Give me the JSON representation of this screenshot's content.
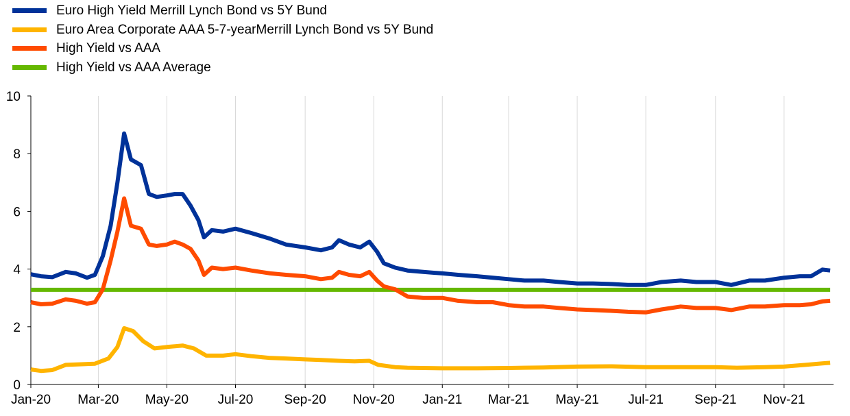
{
  "chart_data": {
    "type": "line",
    "title": "",
    "xlabel": "",
    "ylabel": "",
    "ylim": [
      0,
      10
    ],
    "xlim": [
      "2020-01-01",
      "2021-12-15"
    ],
    "y_ticks": [
      0,
      2,
      4,
      6,
      8,
      10
    ],
    "y_tick_labels": [
      "0",
      "2",
      "4",
      "6",
      "8",
      "10"
    ],
    "x_ticks": [
      "2020-01-01",
      "2020-03-01",
      "2020-05-01",
      "2020-07-01",
      "2020-09-01",
      "2020-11-01",
      "2021-01-01",
      "2021-03-01",
      "2021-05-01",
      "2021-07-01",
      "2021-09-01",
      "2021-11-01"
    ],
    "x_tick_labels": [
      "Jan-20",
      "Mar-20",
      "May-20",
      "Jul-20",
      "Sep-20",
      "Nov-20",
      "Jan-21",
      "Mar-21",
      "May-21",
      "Jul-21",
      "Sep-21",
      "Nov-21"
    ],
    "grid": "vertical",
    "legend_position": "top-left",
    "series": [
      {
        "name": "Euro High Yield Merrill Lynch Bond vs 5Y Bund",
        "color": "#003299",
        "points": [
          [
            "2020-01-01",
            3.82
          ],
          [
            "2020-01-10",
            3.75
          ],
          [
            "2020-01-20",
            3.72
          ],
          [
            "2020-02-01",
            3.9
          ],
          [
            "2020-02-10",
            3.85
          ],
          [
            "2020-02-20",
            3.7
          ],
          [
            "2020-02-27",
            3.8
          ],
          [
            "2020-03-05",
            4.45
          ],
          [
            "2020-03-12",
            5.5
          ],
          [
            "2020-03-18",
            7.0
          ],
          [
            "2020-03-24",
            8.7
          ],
          [
            "2020-03-30",
            7.8
          ],
          [
            "2020-04-08",
            7.6
          ],
          [
            "2020-04-15",
            6.6
          ],
          [
            "2020-04-22",
            6.5
          ],
          [
            "2020-05-01",
            6.55
          ],
          [
            "2020-05-08",
            6.6
          ],
          [
            "2020-05-15",
            6.6
          ],
          [
            "2020-05-22",
            6.2
          ],
          [
            "2020-05-29",
            5.7
          ],
          [
            "2020-06-03",
            5.1
          ],
          [
            "2020-06-10",
            5.35
          ],
          [
            "2020-06-20",
            5.3
          ],
          [
            "2020-07-01",
            5.4
          ],
          [
            "2020-07-15",
            5.25
          ],
          [
            "2020-08-01",
            5.05
          ],
          [
            "2020-08-15",
            4.85
          ],
          [
            "2020-09-01",
            4.75
          ],
          [
            "2020-09-15",
            4.65
          ],
          [
            "2020-09-25",
            4.75
          ],
          [
            "2020-10-01",
            5.0
          ],
          [
            "2020-10-10",
            4.85
          ],
          [
            "2020-10-20",
            4.75
          ],
          [
            "2020-10-28",
            4.95
          ],
          [
            "2020-11-04",
            4.6
          ],
          [
            "2020-11-10",
            4.2
          ],
          [
            "2020-11-20",
            4.05
          ],
          [
            "2020-12-01",
            3.95
          ],
          [
            "2020-12-15",
            3.9
          ],
          [
            "2021-01-01",
            3.85
          ],
          [
            "2021-01-15",
            3.8
          ],
          [
            "2021-02-01",
            3.75
          ],
          [
            "2021-02-15",
            3.7
          ],
          [
            "2021-03-01",
            3.65
          ],
          [
            "2021-03-15",
            3.6
          ],
          [
            "2021-04-01",
            3.6
          ],
          [
            "2021-04-15",
            3.55
          ],
          [
            "2021-05-01",
            3.5
          ],
          [
            "2021-05-15",
            3.5
          ],
          [
            "2021-06-01",
            3.48
          ],
          [
            "2021-06-15",
            3.45
          ],
          [
            "2021-07-01",
            3.45
          ],
          [
            "2021-07-15",
            3.55
          ],
          [
            "2021-08-01",
            3.6
          ],
          [
            "2021-08-15",
            3.55
          ],
          [
            "2021-09-01",
            3.55
          ],
          [
            "2021-09-15",
            3.45
          ],
          [
            "2021-10-01",
            3.6
          ],
          [
            "2021-10-15",
            3.6
          ],
          [
            "2021-11-01",
            3.7
          ],
          [
            "2021-11-15",
            3.75
          ],
          [
            "2021-11-25",
            3.75
          ],
          [
            "2021-12-05",
            3.98
          ],
          [
            "2021-12-12",
            3.95
          ]
        ]
      },
      {
        "name": "Euro Area Corporate AAA 5-7-yearMerrill Lynch Bond vs 5Y Bund",
        "color": "#FFB400",
        "points": [
          [
            "2020-01-01",
            0.52
          ],
          [
            "2020-01-10",
            0.47
          ],
          [
            "2020-01-20",
            0.5
          ],
          [
            "2020-02-01",
            0.68
          ],
          [
            "2020-02-15",
            0.7
          ],
          [
            "2020-02-27",
            0.72
          ],
          [
            "2020-03-10",
            0.9
          ],
          [
            "2020-03-18",
            1.3
          ],
          [
            "2020-03-24",
            1.95
          ],
          [
            "2020-04-01",
            1.85
          ],
          [
            "2020-04-10",
            1.5
          ],
          [
            "2020-04-20",
            1.25
          ],
          [
            "2020-05-01",
            1.3
          ],
          [
            "2020-05-15",
            1.35
          ],
          [
            "2020-05-25",
            1.25
          ],
          [
            "2020-06-05",
            1.0
          ],
          [
            "2020-06-20",
            1.0
          ],
          [
            "2020-07-01",
            1.05
          ],
          [
            "2020-07-15",
            0.98
          ],
          [
            "2020-08-01",
            0.92
          ],
          [
            "2020-08-15",
            0.9
          ],
          [
            "2020-09-01",
            0.87
          ],
          [
            "2020-09-15",
            0.85
          ],
          [
            "2020-10-01",
            0.82
          ],
          [
            "2020-10-15",
            0.8
          ],
          [
            "2020-10-28",
            0.82
          ],
          [
            "2020-11-05",
            0.68
          ],
          [
            "2020-11-20",
            0.6
          ],
          [
            "2020-12-01",
            0.58
          ],
          [
            "2020-12-15",
            0.57
          ],
          [
            "2021-01-01",
            0.56
          ],
          [
            "2021-02-01",
            0.56
          ],
          [
            "2021-03-01",
            0.57
          ],
          [
            "2021-04-01",
            0.59
          ],
          [
            "2021-05-01",
            0.62
          ],
          [
            "2021-06-01",
            0.63
          ],
          [
            "2021-07-01",
            0.6
          ],
          [
            "2021-08-01",
            0.6
          ],
          [
            "2021-09-01",
            0.6
          ],
          [
            "2021-09-20",
            0.58
          ],
          [
            "2021-10-15",
            0.6
          ],
          [
            "2021-11-01",
            0.62
          ],
          [
            "2021-11-20",
            0.68
          ],
          [
            "2021-12-05",
            0.73
          ],
          [
            "2021-12-12",
            0.75
          ]
        ]
      },
      {
        "name": "High Yield vs AAA",
        "color": "#FF4B00",
        "points": [
          [
            "2020-01-01",
            2.85
          ],
          [
            "2020-01-10",
            2.78
          ],
          [
            "2020-01-20",
            2.8
          ],
          [
            "2020-02-01",
            2.95
          ],
          [
            "2020-02-10",
            2.9
          ],
          [
            "2020-02-20",
            2.8
          ],
          [
            "2020-02-27",
            2.85
          ],
          [
            "2020-03-05",
            3.3
          ],
          [
            "2020-03-12",
            4.3
          ],
          [
            "2020-03-18",
            5.3
          ],
          [
            "2020-03-24",
            6.45
          ],
          [
            "2020-03-30",
            5.5
          ],
          [
            "2020-04-08",
            5.4
          ],
          [
            "2020-04-15",
            4.85
          ],
          [
            "2020-04-22",
            4.8
          ],
          [
            "2020-05-01",
            4.85
          ],
          [
            "2020-05-08",
            4.95
          ],
          [
            "2020-05-15",
            4.85
          ],
          [
            "2020-05-22",
            4.7
          ],
          [
            "2020-05-29",
            4.3
          ],
          [
            "2020-06-03",
            3.8
          ],
          [
            "2020-06-10",
            4.05
          ],
          [
            "2020-06-20",
            4.0
          ],
          [
            "2020-07-01",
            4.05
          ],
          [
            "2020-07-15",
            3.95
          ],
          [
            "2020-08-01",
            3.85
          ],
          [
            "2020-08-15",
            3.8
          ],
          [
            "2020-09-01",
            3.75
          ],
          [
            "2020-09-15",
            3.65
          ],
          [
            "2020-09-25",
            3.7
          ],
          [
            "2020-10-01",
            3.9
          ],
          [
            "2020-10-10",
            3.8
          ],
          [
            "2020-10-20",
            3.75
          ],
          [
            "2020-10-28",
            3.9
          ],
          [
            "2020-11-04",
            3.6
          ],
          [
            "2020-11-10",
            3.4
          ],
          [
            "2020-11-20",
            3.3
          ],
          [
            "2020-12-01",
            3.05
          ],
          [
            "2020-12-15",
            3.0
          ],
          [
            "2021-01-01",
            3.0
          ],
          [
            "2021-01-15",
            2.9
          ],
          [
            "2021-02-01",
            2.85
          ],
          [
            "2021-02-15",
            2.85
          ],
          [
            "2021-03-01",
            2.75
          ],
          [
            "2021-03-15",
            2.7
          ],
          [
            "2021-04-01",
            2.7
          ],
          [
            "2021-04-15",
            2.65
          ],
          [
            "2021-05-01",
            2.6
          ],
          [
            "2021-05-15",
            2.58
          ],
          [
            "2021-06-01",
            2.55
          ],
          [
            "2021-06-15",
            2.52
          ],
          [
            "2021-07-01",
            2.5
          ],
          [
            "2021-07-15",
            2.6
          ],
          [
            "2021-08-01",
            2.7
          ],
          [
            "2021-08-15",
            2.65
          ],
          [
            "2021-09-01",
            2.65
          ],
          [
            "2021-09-15",
            2.58
          ],
          [
            "2021-10-01",
            2.7
          ],
          [
            "2021-10-15",
            2.7
          ],
          [
            "2021-11-01",
            2.75
          ],
          [
            "2021-11-15",
            2.75
          ],
          [
            "2021-11-25",
            2.78
          ],
          [
            "2021-12-05",
            2.88
          ],
          [
            "2021-12-12",
            2.9
          ]
        ]
      },
      {
        "name": "High Yield vs AAA Average",
        "color": "#65B800",
        "points": [
          [
            "2020-01-01",
            3.28
          ],
          [
            "2021-12-12",
            3.28
          ]
        ]
      }
    ]
  }
}
